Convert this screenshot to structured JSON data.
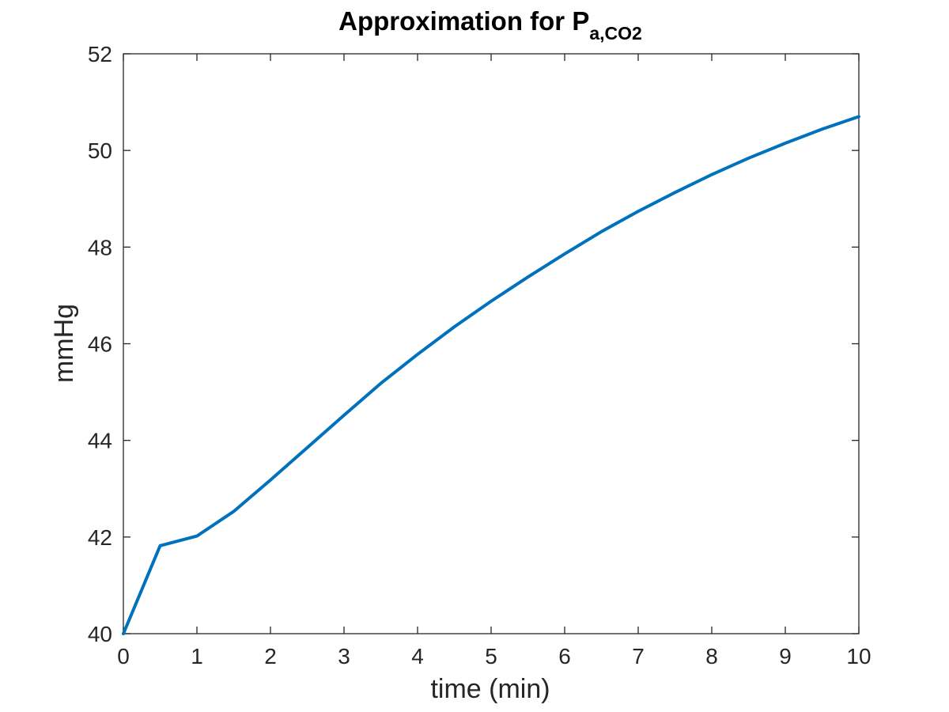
{
  "chart_data": {
    "type": "line",
    "title": "Approximation for P",
    "title_subscript": "a,CO2",
    "xlabel": "time (min)",
    "ylabel": "mmHg",
    "xlim": [
      0,
      10
    ],
    "ylim": [
      40,
      52
    ],
    "xticks": [
      0,
      1,
      2,
      3,
      4,
      5,
      6,
      7,
      8,
      9,
      10
    ],
    "yticks": [
      40,
      42,
      44,
      46,
      48,
      50,
      52
    ],
    "grid": false,
    "series": [
      {
        "color": "#0072bd",
        "x": [
          0,
          0.5,
          1,
          1.5,
          2,
          2.5,
          3,
          3.5,
          4,
          4.5,
          5,
          5.5,
          6,
          6.5,
          7,
          7.5,
          8,
          8.5,
          9,
          9.5,
          10
        ],
        "y": [
          40.0,
          41.82,
          42.02,
          42.53,
          43.18,
          43.85,
          44.52,
          45.18,
          45.78,
          46.35,
          46.88,
          47.38,
          47.86,
          48.32,
          48.74,
          49.13,
          49.5,
          49.84,
          50.15,
          50.44,
          50.7
        ]
      }
    ]
  }
}
